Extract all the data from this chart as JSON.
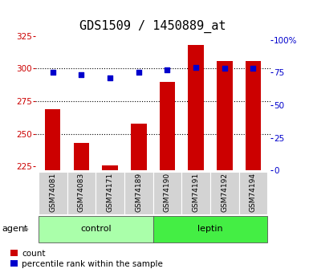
{
  "title": "GDS1509 / 1450889_at",
  "samples": [
    "GSM74081",
    "GSM74083",
    "GSM74171",
    "GSM74189",
    "GSM74190",
    "GSM74191",
    "GSM74192",
    "GSM74194"
  ],
  "counts": [
    269,
    243,
    226,
    258,
    290,
    318,
    306,
    306
  ],
  "percentiles": [
    75,
    73,
    71,
    75,
    77,
    79,
    78,
    78
  ],
  "group_spans": [
    {
      "label": "control",
      "start": 0,
      "end": 3,
      "color": "#aaffaa"
    },
    {
      "label": "leptin",
      "start": 4,
      "end": 7,
      "color": "#44ee44"
    }
  ],
  "bar_color": "#cc0000",
  "dot_color": "#0000cc",
  "ylim_left": [
    222,
    327
  ],
  "ylim_right": [
    0,
    105
  ],
  "yticks_left": [
    225,
    250,
    275,
    300,
    325
  ],
  "yticks_right": [
    0,
    25,
    50,
    75,
    100
  ],
  "hlines": [
    250,
    275,
    300
  ],
  "title_fontsize": 11,
  "axis_color_left": "#cc0000",
  "axis_color_right": "#0000cc",
  "legend_count_label": "count",
  "legend_pct_label": "percentile rank within the sample",
  "agent_label": "agent",
  "sample_bg_color": "#d3d3d3",
  "background_color": "#ffffff"
}
